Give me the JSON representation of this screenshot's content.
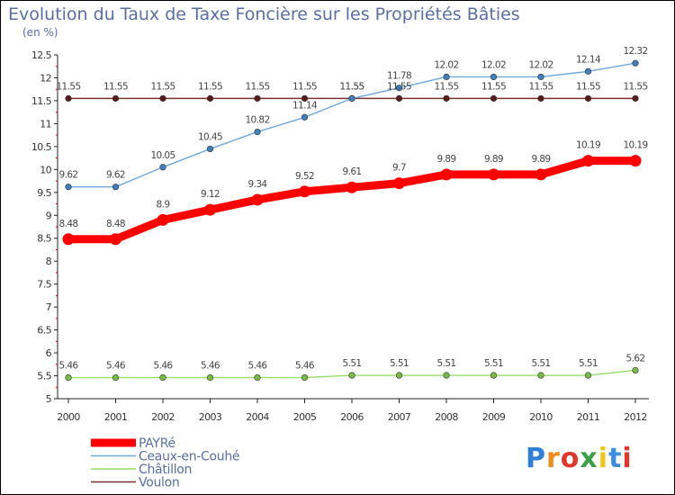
{
  "chart_data": {
    "type": "line",
    "title": "Evolution du Taux de Taxe Foncière sur les Propriétés Bâties",
    "subtitle": "(en %)",
    "x": [
      "2000",
      "2001",
      "2002",
      "2003",
      "2004",
      "2005",
      "2006",
      "2007",
      "2008",
      "2009",
      "2010",
      "2011",
      "2012"
    ],
    "ylim": [
      5,
      12.5
    ],
    "yticks": [
      "5",
      "5.5",
      "6",
      "6.5",
      "7",
      "7.5",
      "8",
      "8.5",
      "9",
      "9.5",
      "10",
      "10.5",
      "11",
      "11.5",
      "12",
      "12.5"
    ],
    "grid": false,
    "legend_position": "bottom-left",
    "series": [
      {
        "name": "PAYRé",
        "color": "#ff0000",
        "values": [
          8.48,
          8.48,
          8.9,
          9.12,
          9.34,
          9.52,
          9.61,
          9.7,
          9.89,
          9.89,
          9.89,
          10.19,
          10.19
        ],
        "labels": [
          "8.48",
          "8.48",
          "8.9",
          "9.12",
          "9.34",
          "9.52",
          "9.61",
          "9.7",
          "9.89",
          "9.89",
          "9.89",
          "10.19",
          "10.19"
        ]
      },
      {
        "name": "Ceaux-en-Couhé",
        "color": "#6fa8dc",
        "values": [
          9.62,
          9.62,
          10.05,
          10.45,
          10.82,
          11.14,
          11.55,
          11.78,
          12.02,
          12.02,
          12.02,
          12.14,
          12.32
        ],
        "labels": [
          "9.62",
          "9.62",
          "10.05",
          "10.45",
          "10.82",
          "11.14",
          "11.55",
          "11.78",
          "12.02",
          "12.02",
          "12.02",
          "12.14",
          "12.32"
        ]
      },
      {
        "name": "Châtillon",
        "color": "#99dd66",
        "values": [
          5.46,
          5.46,
          5.46,
          5.46,
          5.46,
          5.46,
          5.51,
          5.51,
          5.51,
          5.51,
          5.51,
          5.51,
          5.62
        ],
        "labels": [
          "5.46",
          "5.46",
          "5.46",
          "5.46",
          "5.46",
          "5.46",
          "5.51",
          "5.51",
          "5.51",
          "5.51",
          "5.51",
          "5.51",
          "5.62"
        ]
      },
      {
        "name": "Voulon",
        "color": "#7a3030",
        "values": [
          11.55,
          11.55,
          11.55,
          11.55,
          11.55,
          11.55,
          11.55,
          11.55,
          11.55,
          11.55,
          11.55,
          11.55,
          11.55
        ],
        "labels": [
          "11.55",
          "11.55",
          "11.55",
          "11.55",
          "11.55",
          "11.55",
          "11.55",
          "11.55",
          "11.55",
          "11.55",
          "11.55",
          "11.55",
          "11.55"
        ]
      }
    ]
  },
  "logo": {
    "text": "Proxiti",
    "colors": [
      "#2e7fd8",
      "#f08a1c",
      "#e0362c",
      "#3aa14a",
      "#f0c419",
      "#3c8de0",
      "#e0362c"
    ]
  }
}
